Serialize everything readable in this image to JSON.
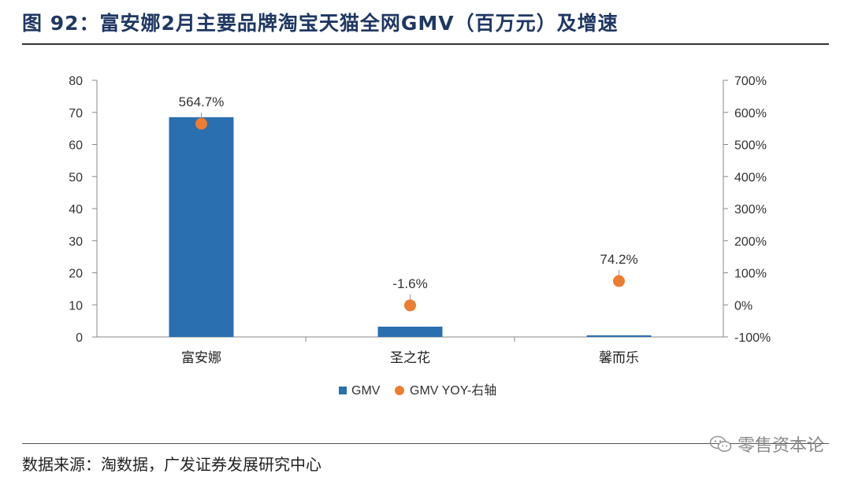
{
  "header": {
    "title": "图 92：富安娜2月主要品牌淘宝天猫全网GMV（百万元）及增速"
  },
  "footer": {
    "source": "数据来源：淘数据，广发证券发展研究中心",
    "watermark": "零售资本论"
  },
  "colors": {
    "bar": "#2a6fb0",
    "dot": "#ed7d31",
    "title": "#1f3763"
  },
  "chart_data": {
    "type": "bar",
    "categories": [
      "富安娜",
      "圣之花",
      "馨而乐"
    ],
    "series": [
      {
        "name": "GMV",
        "type": "bar",
        "axis": "left",
        "values": [
          68.5,
          3.2,
          0.5
        ]
      },
      {
        "name": "GMV YOY-右轴",
        "type": "scatter",
        "axis": "right",
        "values": [
          564.7,
          -1.6,
          74.2
        ],
        "labels": [
          "564.7%",
          "-1.6%",
          "74.2%"
        ]
      }
    ],
    "y_left": {
      "ylim": [
        0,
        80
      ],
      "ticks": [
        "0",
        "10",
        "20",
        "30",
        "40",
        "50",
        "60",
        "70",
        "80"
      ]
    },
    "y_right": {
      "ylim": [
        -100,
        700
      ],
      "ticks": [
        "-100%",
        "0%",
        "100%",
        "200%",
        "300%",
        "400%",
        "500%",
        "600%",
        "700%"
      ]
    },
    "legend": {
      "position": "bottom"
    },
    "grid": false
  }
}
